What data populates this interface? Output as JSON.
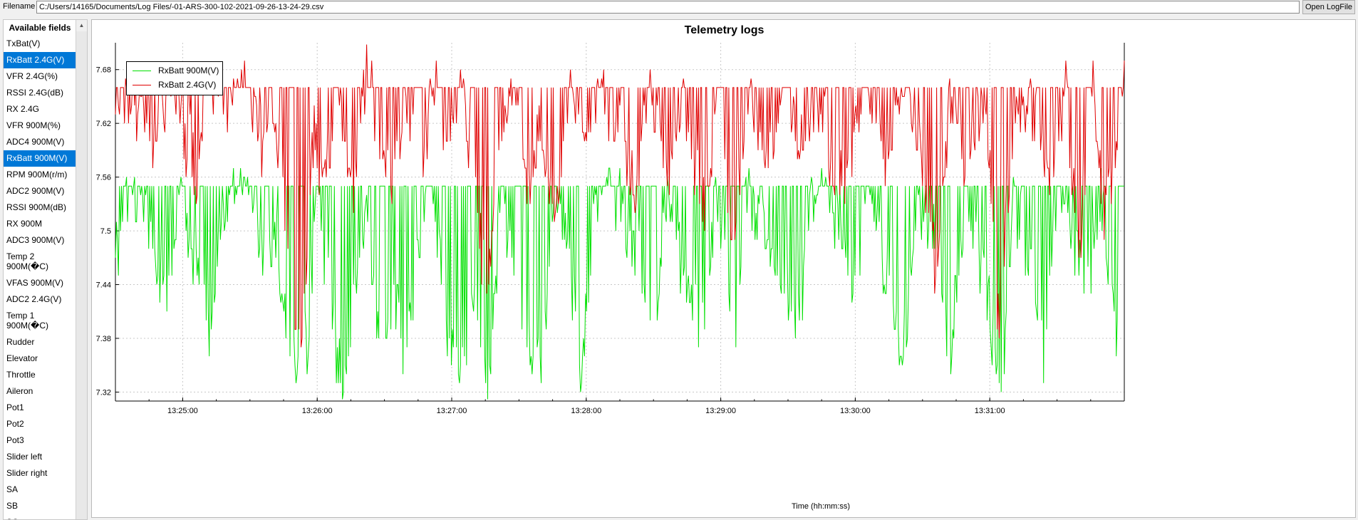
{
  "toolbar": {
    "filename_label": "Filename",
    "filename_value": "C:/Users/14165/Documents/Log Files/-01-ARS-300-102-2021-09-26-13-24-29.csv",
    "open_button": "Open LogFile"
  },
  "fields": {
    "header": "Available fields",
    "items": [
      {
        "label": "TxBat(V)",
        "selected": false
      },
      {
        "label": "RxBatt 2.4G(V)",
        "selected": true
      },
      {
        "label": "VFR 2.4G(%)",
        "selected": false
      },
      {
        "label": "RSSI 2.4G(dB)",
        "selected": false
      },
      {
        "label": "RX 2.4G",
        "selected": false
      },
      {
        "label": "VFR 900M(%)",
        "selected": false
      },
      {
        "label": "ADC4 900M(V)",
        "selected": false
      },
      {
        "label": "RxBatt 900M(V)",
        "selected": true
      },
      {
        "label": "RPM 900M(r/m)",
        "selected": false
      },
      {
        "label": "ADC2 900M(V)",
        "selected": false
      },
      {
        "label": "RSSI 900M(dB)",
        "selected": false
      },
      {
        "label": "RX 900M",
        "selected": false
      },
      {
        "label": "ADC3 900M(V)",
        "selected": false
      },
      {
        "label": "Temp 2 900M(�C)",
        "selected": false
      },
      {
        "label": "VFAS 900M(V)",
        "selected": false
      },
      {
        "label": "ADC2 2.4G(V)",
        "selected": false
      },
      {
        "label": "Temp 1 900M(�C)",
        "selected": false
      },
      {
        "label": "Rudder",
        "selected": false
      },
      {
        "label": "Elevator",
        "selected": false
      },
      {
        "label": "Throttle",
        "selected": false
      },
      {
        "label": "Aileron",
        "selected": false
      },
      {
        "label": "Pot1",
        "selected": false
      },
      {
        "label": "Pot2",
        "selected": false
      },
      {
        "label": "Pot3",
        "selected": false
      },
      {
        "label": "Slider left",
        "selected": false
      },
      {
        "label": "Slider right",
        "selected": false
      },
      {
        "label": "SA",
        "selected": false
      },
      {
        "label": "SB",
        "selected": false
      },
      {
        "label": "SC",
        "selected": false
      }
    ]
  },
  "chart_data": {
    "type": "line",
    "title": "Telemetry logs",
    "xlabel": "Time (hh:mm:ss)",
    "ylabel": "",
    "x_ticks": [
      "13:25:00",
      "13:26:00",
      "13:27:00",
      "13:28:00",
      "13:29:00",
      "13:30:00",
      "13:31:00"
    ],
    "y_ticks": [
      7.32,
      7.38,
      7.44,
      7.5,
      7.56,
      7.62,
      7.68
    ],
    "ylim": [
      7.31,
      7.71
    ],
    "xlim": [
      "13:24:30",
      "13:32:00"
    ],
    "grid": true,
    "legend_position": "top-left",
    "series": [
      {
        "name": "RxBatt 900M(V)",
        "color": "#00e000",
        "base": 7.55,
        "points": [
          [
            "13:24:30",
            7.48
          ],
          [
            "13:24:36",
            7.55
          ],
          [
            "13:24:42",
            7.55
          ],
          [
            "13:24:50",
            7.45
          ],
          [
            "13:24:54",
            7.43
          ],
          [
            "13:24:58",
            7.56
          ],
          [
            "13:25:06",
            7.46
          ],
          [
            "13:25:12",
            7.4
          ],
          [
            "13:25:20",
            7.55
          ],
          [
            "13:25:30",
            7.57
          ],
          [
            "13:25:36",
            7.47
          ],
          [
            "13:25:42",
            7.5
          ],
          [
            "13:25:48",
            7.38
          ],
          [
            "13:25:52",
            7.35
          ],
          [
            "13:25:56",
            7.39
          ],
          [
            "13:26:00",
            7.55
          ],
          [
            "13:26:04",
            7.47
          ],
          [
            "13:26:08",
            7.37
          ],
          [
            "13:26:12",
            7.35
          ],
          [
            "13:26:16",
            7.42
          ],
          [
            "13:26:22",
            7.55
          ],
          [
            "13:26:28",
            7.36
          ],
          [
            "13:26:34",
            7.45
          ],
          [
            "13:26:40",
            7.36
          ],
          [
            "13:26:46",
            7.5
          ],
          [
            "13:26:52",
            7.55
          ],
          [
            "13:26:58",
            7.4
          ],
          [
            "13:27:04",
            7.36
          ],
          [
            "13:27:10",
            7.44
          ],
          [
            "13:27:16",
            7.31
          ],
          [
            "13:27:22",
            7.55
          ],
          [
            "13:27:28",
            7.46
          ],
          [
            "13:27:34",
            7.37
          ],
          [
            "13:27:40",
            7.36
          ],
          [
            "13:27:46",
            7.55
          ],
          [
            "13:27:52",
            7.48
          ],
          [
            "13:27:58",
            7.36
          ],
          [
            "13:28:04",
            7.55
          ],
          [
            "13:28:14",
            7.55
          ],
          [
            "13:28:24",
            7.47
          ],
          [
            "13:28:30",
            7.36
          ],
          [
            "13:28:36",
            7.55
          ],
          [
            "13:28:44",
            7.45
          ],
          [
            "13:28:52",
            7.39
          ],
          [
            "13:28:58",
            7.55
          ],
          [
            "13:29:06",
            7.37
          ],
          [
            "13:29:12",
            7.55
          ],
          [
            "13:29:20",
            7.49
          ],
          [
            "13:29:28",
            7.45
          ],
          [
            "13:29:34",
            7.38
          ],
          [
            "13:29:40",
            7.55
          ],
          [
            "13:29:48",
            7.55
          ],
          [
            "13:29:54",
            7.5
          ],
          [
            "13:30:00",
            7.42
          ],
          [
            "13:30:06",
            7.55
          ],
          [
            "13:30:14",
            7.45
          ],
          [
            "13:30:20",
            7.36
          ],
          [
            "13:30:24",
            7.44
          ],
          [
            "13:30:30",
            7.55
          ],
          [
            "13:30:38",
            7.47
          ],
          [
            "13:30:42",
            7.37
          ],
          [
            "13:30:50",
            7.55
          ],
          [
            "13:30:58",
            7.45
          ],
          [
            "13:31:06",
            7.32
          ],
          [
            "13:31:10",
            7.55
          ],
          [
            "13:31:18",
            7.47
          ],
          [
            "13:31:24",
            7.35
          ],
          [
            "13:31:30",
            7.55
          ],
          [
            "13:31:38",
            7.5
          ],
          [
            "13:31:44",
            7.45
          ],
          [
            "13:31:50",
            7.55
          ],
          [
            "13:31:56",
            7.39
          ],
          [
            "13:32:00",
            7.55
          ]
        ]
      },
      {
        "name": "RxBatt 2.4G(V)",
        "color": "#e00000",
        "base": 7.66,
        "points": [
          [
            "13:24:30",
            7.63
          ],
          [
            "13:24:36",
            7.67
          ],
          [
            "13:24:42",
            7.64
          ],
          [
            "13:24:48",
            7.6
          ],
          [
            "13:24:54",
            7.68
          ],
          [
            "13:25:00",
            7.62
          ],
          [
            "13:25:06",
            7.58
          ],
          [
            "13:25:12",
            7.66
          ],
          [
            "13:25:20",
            7.63
          ],
          [
            "13:25:28",
            7.7
          ],
          [
            "13:25:34",
            7.6
          ],
          [
            "13:25:40",
            7.65
          ],
          [
            "13:25:46",
            7.5
          ],
          [
            "13:25:50",
            7.42
          ],
          [
            "13:25:54",
            7.39
          ],
          [
            "13:25:58",
            7.62
          ],
          [
            "13:26:04",
            7.56
          ],
          [
            "13:26:10",
            7.66
          ],
          [
            "13:26:16",
            7.52
          ],
          [
            "13:26:22",
            7.69
          ],
          [
            "13:26:28",
            7.62
          ],
          [
            "13:26:34",
            7.55
          ],
          [
            "13:26:40",
            7.66
          ],
          [
            "13:26:46",
            7.58
          ],
          [
            "13:26:52",
            7.67
          ],
          [
            "13:26:58",
            7.62
          ],
          [
            "13:27:04",
            7.68
          ],
          [
            "13:27:10",
            7.55
          ],
          [
            "13:27:16",
            7.44
          ],
          [
            "13:27:22",
            7.62
          ],
          [
            "13:27:28",
            7.67
          ],
          [
            "13:27:34",
            7.56
          ],
          [
            "13:27:40",
            7.62
          ],
          [
            "13:27:46",
            7.52
          ],
          [
            "13:27:52",
            7.66
          ],
          [
            "13:28:00",
            7.6
          ],
          [
            "13:28:06",
            7.66
          ],
          [
            "13:28:14",
            7.62
          ],
          [
            "13:28:22",
            7.55
          ],
          [
            "13:28:28",
            7.66
          ],
          [
            "13:28:36",
            7.58
          ],
          [
            "13:28:44",
            7.66
          ],
          [
            "13:28:52",
            7.53
          ],
          [
            "13:29:00",
            7.65
          ],
          [
            "13:29:06",
            7.49
          ],
          [
            "13:29:12",
            7.66
          ],
          [
            "13:29:20",
            7.58
          ],
          [
            "13:29:28",
            7.66
          ],
          [
            "13:29:36",
            7.6
          ],
          [
            "13:29:44",
            7.66
          ],
          [
            "13:29:52",
            7.55
          ],
          [
            "13:30:00",
            7.62
          ],
          [
            "13:30:06",
            7.66
          ],
          [
            "13:30:14",
            7.58
          ],
          [
            "13:30:20",
            7.66
          ],
          [
            "13:30:28",
            7.62
          ],
          [
            "13:30:36",
            7.47
          ],
          [
            "13:30:42",
            7.66
          ],
          [
            "13:30:50",
            7.58
          ],
          [
            "13:30:58",
            7.66
          ],
          [
            "13:31:04",
            7.39
          ],
          [
            "13:31:10",
            7.62
          ],
          [
            "13:31:18",
            7.66
          ],
          [
            "13:31:26",
            7.58
          ],
          [
            "13:31:34",
            7.66
          ],
          [
            "13:31:40",
            7.48
          ],
          [
            "13:31:46",
            7.66
          ],
          [
            "13:31:52",
            7.52
          ],
          [
            "13:31:58",
            7.66
          ],
          [
            "13:32:00",
            7.66
          ]
        ]
      }
    ]
  }
}
